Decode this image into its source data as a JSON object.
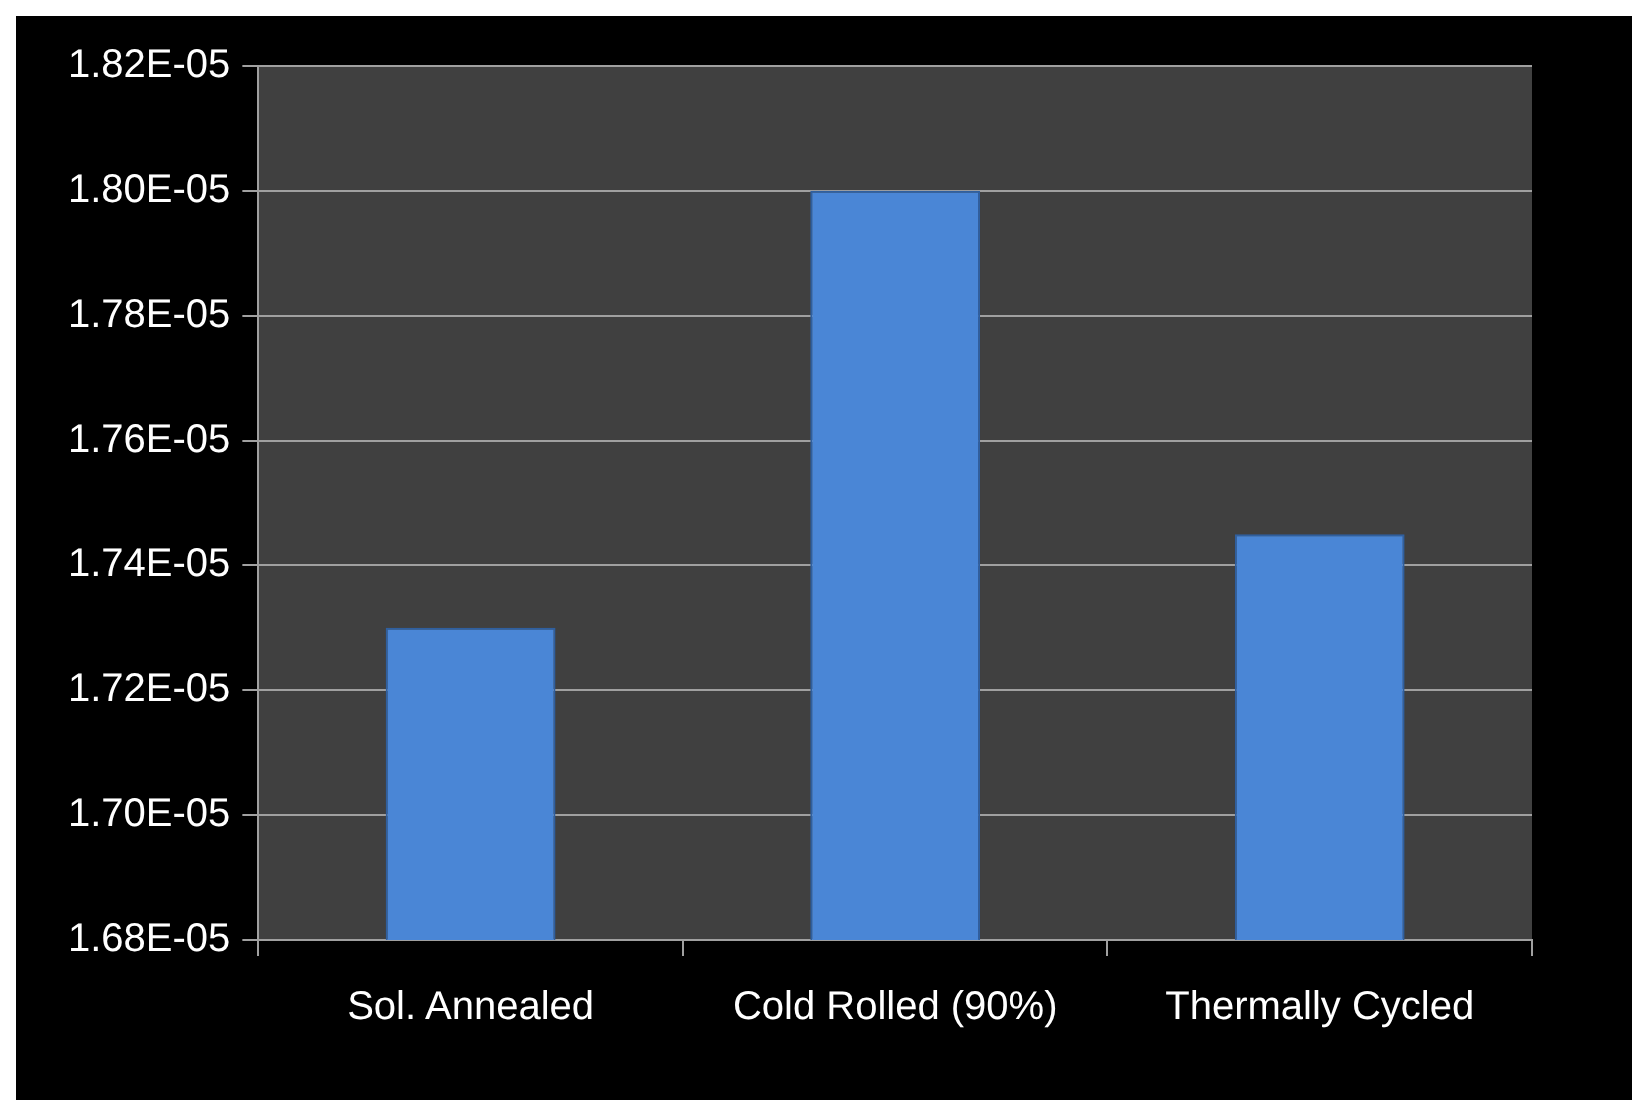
{
  "chart_data": {
    "type": "bar",
    "categories": [
      "Sol. Annealed",
      "Cold Rolled (90%)",
      "Thermally Cycled"
    ],
    "values": [
      1.73e-05,
      1.8e-05,
      1.745e-05
    ],
    "color": "#4a86d6",
    "ylim": [
      1.68e-05,
      1.82e-05
    ],
    "yticks": [
      {
        "value": 1.68e-05,
        "label": "1.68E-05"
      },
      {
        "value": 1.7e-05,
        "label": "1.70E-05"
      },
      {
        "value": 1.72e-05,
        "label": "1.72E-05"
      },
      {
        "value": 1.74e-05,
        "label": "1.74E-05"
      },
      {
        "value": 1.76e-05,
        "label": "1.76E-05"
      },
      {
        "value": 1.78e-05,
        "label": "1.78E-05"
      },
      {
        "value": 1.8e-05,
        "label": "1.80E-05"
      },
      {
        "value": 1.82e-05,
        "label": "1.82E-05"
      }
    ],
    "grid": "y"
  }
}
